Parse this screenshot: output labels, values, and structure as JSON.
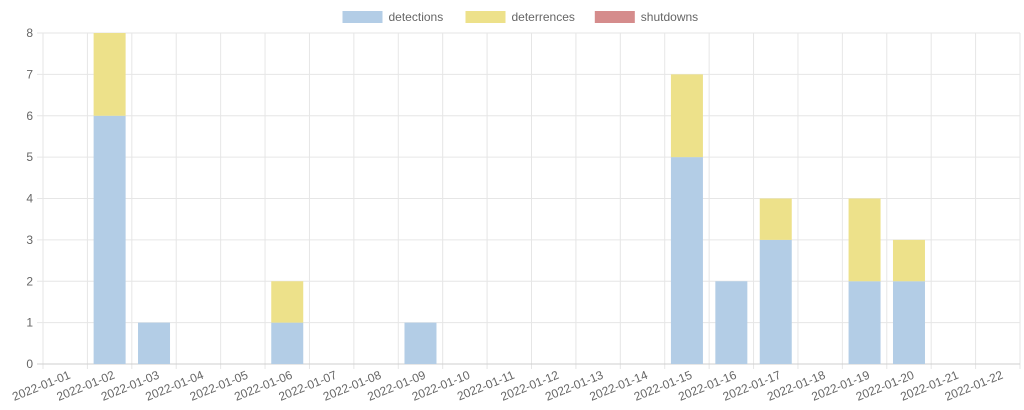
{
  "chart_data": {
    "type": "bar",
    "stacked": true,
    "categories": [
      "2022-01-01",
      "2022-01-02",
      "2022-01-03",
      "2022-01-04",
      "2022-01-05",
      "2022-01-06",
      "2022-01-07",
      "2022-01-08",
      "2022-01-09",
      "2022-01-10",
      "2022-01-11",
      "2022-01-12",
      "2022-01-13",
      "2022-01-14",
      "2022-01-15",
      "2022-01-16",
      "2022-01-17",
      "2022-01-18",
      "2022-01-19",
      "2022-01-20",
      "2022-01-21",
      "2022-01-22"
    ],
    "series": [
      {
        "name": "detections",
        "color": "#b3cde6",
        "values": [
          0,
          6,
          1,
          0,
          0,
          1,
          0,
          0,
          1,
          0,
          0,
          0,
          0,
          0,
          5,
          2,
          3,
          0,
          2,
          2,
          0,
          0
        ]
      },
      {
        "name": "deterrences",
        "color": "#ede18a",
        "values": [
          0,
          2,
          0,
          0,
          0,
          1,
          0,
          0,
          0,
          0,
          0,
          0,
          0,
          0,
          2,
          0,
          1,
          0,
          2,
          1,
          0,
          0
        ]
      },
      {
        "name": "shutdowns",
        "color": "#d58c8c",
        "values": [
          0,
          0,
          0,
          0,
          0,
          0,
          0,
          0,
          0,
          0,
          0,
          0,
          0,
          0,
          0,
          0,
          0,
          0,
          0,
          0,
          0,
          0
        ]
      }
    ],
    "ylim": [
      0,
      8
    ],
    "yticks": [
      "0",
      "1",
      "2",
      "3",
      "4",
      "5",
      "6",
      "7",
      "8"
    ],
    "grid": true,
    "legend_position": "top-center",
    "title": "",
    "xlabel": "",
    "ylabel": ""
  }
}
